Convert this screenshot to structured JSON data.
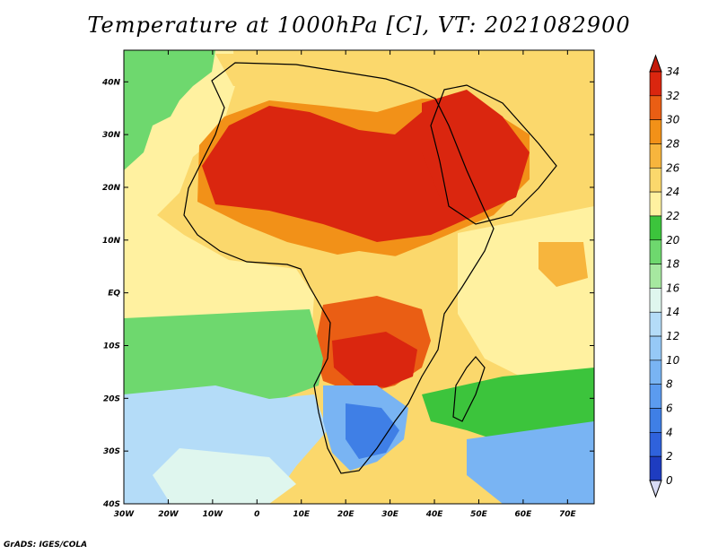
{
  "title": "Temperature at 1000hPa [C], VT: 2021082900",
  "footer": "GrADS: IGES/COLA",
  "map": {
    "lon_range": [
      -30,
      76
    ],
    "lat_range": [
      -40,
      46
    ],
    "lon_ticks": [
      {
        "value": -30,
        "label": "30W"
      },
      {
        "value": -20,
        "label": "20W"
      },
      {
        "value": -10,
        "label": "10W"
      },
      {
        "value": 0,
        "label": "0"
      },
      {
        "value": 10,
        "label": "10E"
      },
      {
        "value": 20,
        "label": "20E"
      },
      {
        "value": 30,
        "label": "30E"
      },
      {
        "value": 40,
        "label": "40E"
      },
      {
        "value": 50,
        "label": "50E"
      },
      {
        "value": 60,
        "label": "60E"
      },
      {
        "value": 70,
        "label": "70E"
      }
    ],
    "lat_ticks": [
      {
        "value": 40,
        "label": "40N"
      },
      {
        "value": 30,
        "label": "30N"
      },
      {
        "value": 20,
        "label": "20N"
      },
      {
        "value": 10,
        "label": "10N"
      },
      {
        "value": 0,
        "label": "EQ"
      },
      {
        "value": -10,
        "label": "10S"
      },
      {
        "value": -20,
        "label": "20S"
      },
      {
        "value": -30,
        "label": "30S"
      },
      {
        "value": -40,
        "label": "40S"
      }
    ]
  },
  "colorbar": {
    "levels": [
      {
        "label": "0",
        "color": "#0b1d78"
      },
      {
        "label": "2",
        "color": "#1e3cc0"
      },
      {
        "label": "4",
        "color": "#2f62dc"
      },
      {
        "label": "6",
        "color": "#3f7fe6"
      },
      {
        "label": "8",
        "color": "#5b9bef"
      },
      {
        "label": "10",
        "color": "#79b4f3"
      },
      {
        "label": "12",
        "color": "#96c9f6"
      },
      {
        "label": "14",
        "color": "#b4dcf8"
      },
      {
        "label": "16",
        "color": "#dff6ee"
      },
      {
        "label": "18",
        "color": "#a6e8a0"
      },
      {
        "label": "20",
        "color": "#6ed86e"
      },
      {
        "label": "22",
        "color": "#3cc43c"
      },
      {
        "label": "24",
        "color": "#fff1a0"
      },
      {
        "label": "26",
        "color": "#fbd86c"
      },
      {
        "label": "28",
        "color": "#f7b53d"
      },
      {
        "label": "30",
        "color": "#f29118"
      },
      {
        "label": "32",
        "color": "#ea5e14"
      },
      {
        "label": "34",
        "color": "#da260f"
      }
    ],
    "min_color": "#d8dcf6",
    "max_color": "#c41a0a"
  }
}
